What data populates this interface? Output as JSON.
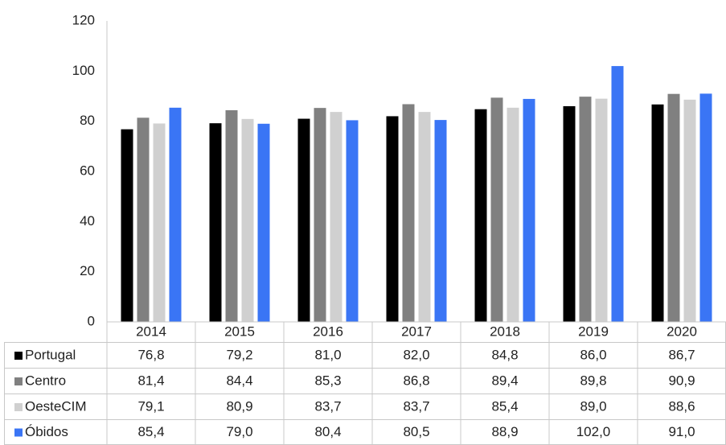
{
  "chart_data": {
    "type": "bar",
    "categories": [
      "2014",
      "2015",
      "2016",
      "2017",
      "2018",
      "2019",
      "2020"
    ],
    "series": [
      {
        "name": "Portugal",
        "color": "#000000",
        "values": [
          76.8,
          79.2,
          81.0,
          82.0,
          84.8,
          86.0,
          86.7
        ],
        "value_labels": [
          "76,8",
          "79,2",
          "81,0",
          "82,0",
          "84,8",
          "86,0",
          "86,7"
        ]
      },
      {
        "name": "Centro",
        "color": "#808080",
        "values": [
          81.4,
          84.4,
          85.3,
          86.8,
          89.4,
          89.8,
          90.9
        ],
        "value_labels": [
          "81,4",
          "84,4",
          "85,3",
          "86,8",
          "89,4",
          "89,8",
          "90,9"
        ]
      },
      {
        "name": "OesteCIM",
        "color": "#d0d0d0",
        "values": [
          79.1,
          80.9,
          83.7,
          83.7,
          85.4,
          89.0,
          88.6
        ],
        "value_labels": [
          "79,1",
          "80,9",
          "83,7",
          "83,7",
          "85,4",
          "89,0",
          "88,6"
        ]
      },
      {
        "name": "Óbidos",
        "color": "#3a75f5",
        "values": [
          85.4,
          79.0,
          80.4,
          80.5,
          88.9,
          102.0,
          91.0
        ],
        "value_labels": [
          "85,4",
          "79,0",
          "80,4",
          "80,5",
          "88,9",
          "102,0",
          "91,0"
        ]
      }
    ],
    "ylim": [
      0,
      120
    ],
    "yticks": [
      0,
      20,
      40,
      60,
      80,
      100,
      120
    ],
    "grid": false
  }
}
